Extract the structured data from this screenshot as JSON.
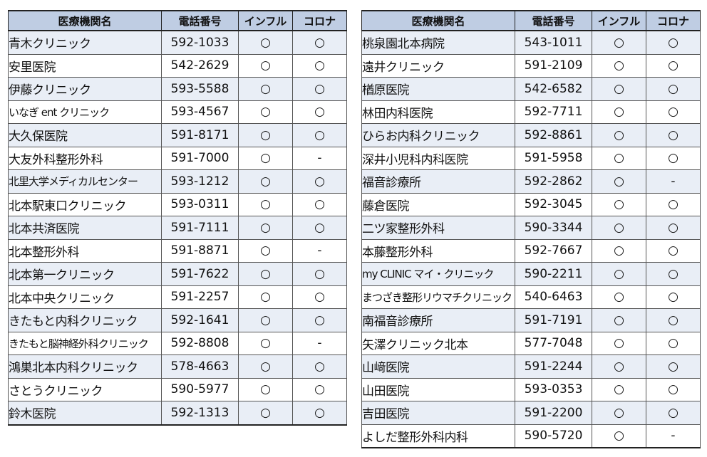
{
  "headers": {
    "name": "医療機関名",
    "phone": "電話番号",
    "flu": "インフル",
    "covid": "コロナ"
  },
  "left_rows": [
    {
      "name": "青木クリニック",
      "phone": "592-1033",
      "flu": "○",
      "covid": "○"
    },
    {
      "name": "安里医院",
      "phone": "542-2629",
      "flu": "○",
      "covid": "○"
    },
    {
      "name": "伊藤クリニック",
      "phone": "593-5588",
      "flu": "○",
      "covid": "○"
    },
    {
      "name": "いなぎ ent クリニック",
      "phone": "593-4567",
      "flu": "○",
      "covid": "○"
    },
    {
      "name": "大久保医院",
      "phone": "591-8171",
      "flu": "○",
      "covid": "○"
    },
    {
      "name": "大友外科整形外科",
      "phone": "591-7000",
      "flu": "○",
      "covid": "-"
    },
    {
      "name": "北里大学メディカルセンター",
      "phone": "593-1212",
      "flu": "○",
      "covid": "○"
    },
    {
      "name": "北本駅東口クリニック",
      "phone": "593-0311",
      "flu": "○",
      "covid": "○"
    },
    {
      "name": "北本共済医院",
      "phone": "591-7111",
      "flu": "○",
      "covid": "○"
    },
    {
      "name": "北本整形外科",
      "phone": "591-8871",
      "flu": "○",
      "covid": "-"
    },
    {
      "name": "北本第一クリニック",
      "phone": "591-7622",
      "flu": "○",
      "covid": "○"
    },
    {
      "name": "北本中央クリニック",
      "phone": "591-2257",
      "flu": "○",
      "covid": "○"
    },
    {
      "name": "きたもと内科クリニック",
      "phone": "592-1641",
      "flu": "○",
      "covid": "○"
    },
    {
      "name": "きたもと脳神経外科クリニック",
      "phone": "592-8808",
      "flu": "○",
      "covid": "-"
    },
    {
      "name": "鴻巣北本内科クリニック",
      "phone": "578-4663",
      "flu": "○",
      "covid": "○"
    },
    {
      "name": "さとうクリニック",
      "phone": "590-5977",
      "flu": "○",
      "covid": "○"
    },
    {
      "name": "鈴木医院",
      "phone": "592-1313",
      "flu": "○",
      "covid": "○"
    }
  ],
  "right_rows": [
    {
      "name": "桃泉園北本病院",
      "phone": "543-1011",
      "flu": "○",
      "covid": "○"
    },
    {
      "name": "遠井クリニック",
      "phone": "591-2109",
      "flu": "○",
      "covid": "○"
    },
    {
      "name": "楢原医院",
      "phone": "542-6582",
      "flu": "○",
      "covid": "○"
    },
    {
      "name": "林田内科医院",
      "phone": "592-7711",
      "flu": "○",
      "covid": "○"
    },
    {
      "name": "ひらお内科クリニック",
      "phone": "592-8861",
      "flu": "○",
      "covid": "○"
    },
    {
      "name": "深井小児科内科医院",
      "phone": "591-5958",
      "flu": "○",
      "covid": "○"
    },
    {
      "name": "福音診療所",
      "phone": "592-2862",
      "flu": "○",
      "covid": "-"
    },
    {
      "name": "藤倉医院",
      "phone": "592-3045",
      "flu": "○",
      "covid": "○"
    },
    {
      "name": "二ツ家整形外科",
      "phone": "590-3344",
      "flu": "○",
      "covid": "○"
    },
    {
      "name": "本藤整形外科",
      "phone": "592-7667",
      "flu": "○",
      "covid": "○"
    },
    {
      "name": "my CLINIC マイ・クリニック",
      "phone": "590-2211",
      "flu": "○",
      "covid": "○"
    },
    {
      "name": "まつざき整形リウマチクリニック",
      "phone": "540-6463",
      "flu": "○",
      "covid": "○"
    },
    {
      "name": "南福音診療所",
      "phone": "591-7191",
      "flu": "○",
      "covid": "○"
    },
    {
      "name": "矢澤クリニック北本",
      "phone": "577-7048",
      "flu": "○",
      "covid": "○"
    },
    {
      "name": "山﨑医院",
      "phone": "591-2244",
      "flu": "○",
      "covid": "○"
    },
    {
      "name": "山田医院",
      "phone": "593-0353",
      "flu": "○",
      "covid": "○"
    },
    {
      "name": "吉田医院",
      "phone": "591-2200",
      "flu": "○",
      "covid": "○"
    },
    {
      "name": "よしだ整形外科内科",
      "phone": "590-5720",
      "flu": "○",
      "covid": "-"
    }
  ]
}
